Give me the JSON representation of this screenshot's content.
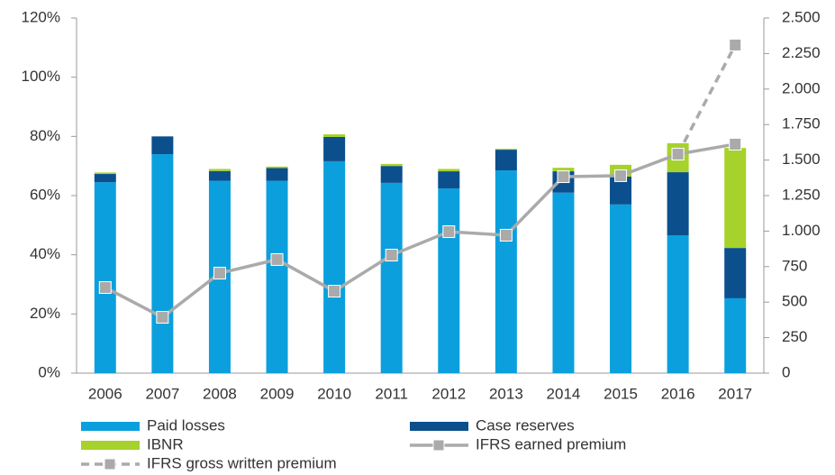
{
  "chart_data": {
    "type": "bar",
    "categories": [
      "2006",
      "2007",
      "2008",
      "2009",
      "2010",
      "2011",
      "2012",
      "2013",
      "2014",
      "2015",
      "2016",
      "2017"
    ],
    "series": [
      {
        "name": "Paid losses",
        "color": "#0ba0dd",
        "kind": "bar",
        "values": [
          64.5,
          74,
          65,
          65,
          71.6,
          64.3,
          62.4,
          68.5,
          61,
          57,
          46.6,
          25.3
        ]
      },
      {
        "name": "Case reserves",
        "color": "#0b4f8c",
        "kind": "bar",
        "values": [
          2.8,
          6,
          3.3,
          4.3,
          8.2,
          5.7,
          5.8,
          7,
          7.2,
          9.4,
          21.3,
          17
        ]
      },
      {
        "name": "IBNR",
        "color": "#a6d22b",
        "kind": "bar",
        "values": [
          0.5,
          0,
          0.7,
          0.5,
          0.9,
          0.7,
          0.8,
          0.3,
          1.2,
          4,
          9.8,
          33.8
        ]
      },
      {
        "name": "IFRS earned premium",
        "color": "#aaaaaa",
        "kind": "line",
        "dashed": false,
        "axis": "y2",
        "values": [
          603,
          393,
          704,
          800,
          577,
          831,
          996,
          971,
          1383,
          1390,
          1542,
          1612
        ]
      },
      {
        "name": "IFRS gross written premium",
        "color": "#aaaaaa",
        "kind": "line",
        "dashed": true,
        "axis": "y2",
        "values": [
          null,
          null,
          null,
          null,
          null,
          null,
          null,
          null,
          null,
          null,
          1542,
          2310
        ]
      }
    ],
    "ylim": [
      0,
      120
    ],
    "yticks": [
      {
        "value": 0,
        "label": "0%"
      },
      {
        "value": 20,
        "label": "20%"
      },
      {
        "value": 40,
        "label": "40%"
      },
      {
        "value": 60,
        "label": "60%"
      },
      {
        "value": 80,
        "label": "80%"
      },
      {
        "value": 100,
        "label": "100%"
      },
      {
        "value": 120,
        "label": "120%"
      }
    ],
    "y2lim": [
      0,
      2500
    ],
    "y2ticks": [
      0,
      250,
      500,
      750,
      {
        "value": 1000,
        "label": "1.000"
      },
      {
        "value": 1250,
        "label": "1.250"
      },
      {
        "value": 1500,
        "label": "1.500"
      },
      {
        "value": 1750,
        "label": "1.750"
      },
      {
        "value": 2000,
        "label": "2.000"
      },
      {
        "value": 2250,
        "label": "2.250"
      },
      {
        "value": 2500,
        "label": "2.500"
      }
    ],
    "grid": false
  }
}
